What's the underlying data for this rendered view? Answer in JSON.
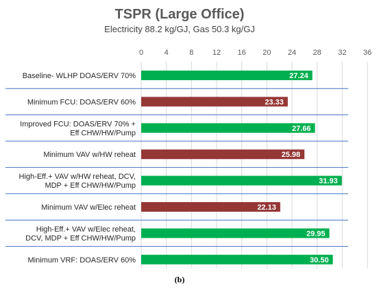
{
  "chart_data": {
    "type": "bar",
    "orientation": "horizontal",
    "title": "TSPR (Large Office)",
    "subtitle": "Electricity 88.2 kg/GJ, Gas 50.3 kg/GJ",
    "xlim": [
      0,
      36
    ],
    "x_ticks": [
      "0",
      "4",
      "8",
      "12",
      "16",
      "20",
      "24",
      "28",
      "32",
      "36"
    ],
    "x_axis_position": "top",
    "grid": true,
    "categories": [
      [
        "Baseline- WLHP DOAS/ERV 70%"
      ],
      [
        "Minimum FCU: DOAS/ERV 60%"
      ],
      [
        "Improved FCU: DOAS/ERV 70% +",
        "Eff CHW/HW/Pump"
      ],
      [
        "Minimum VAV w/HW reheat"
      ],
      [
        "High-Eff.+ VAV w/HW reheat, DCV,",
        "MDP + Eff CHW/HW/Pump"
      ],
      [
        "Minimum VAV w/Elec reheat"
      ],
      [
        "High-Eff.+ VAV w/Elec reheat,",
        "DCV, MDP + Eff CHW/HW/Pump"
      ],
      [
        "Minimum  VRF: DOAS/ERV 60%"
      ]
    ],
    "values": [
      27.24,
      23.33,
      27.66,
      25.98,
      31.93,
      22.13,
      29.95,
      30.5
    ],
    "value_labels": [
      "27.24",
      "23.33",
      "27.66",
      "25.98",
      "31.93",
      "22.13",
      "29.95",
      "30.50"
    ],
    "bar_colors": [
      "#00b050",
      "#953735",
      "#00b050",
      "#953735",
      "#00b050",
      "#953735",
      "#00b050",
      "#00b050"
    ],
    "group_separator_color": "#4472c4"
  },
  "caption": "(b)"
}
